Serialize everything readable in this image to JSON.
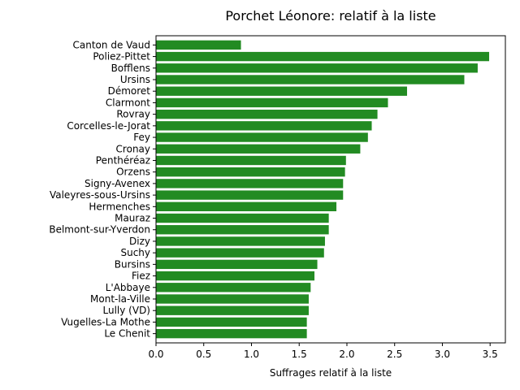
{
  "chart_data": {
    "type": "bar",
    "orientation": "horizontal",
    "title": "Porchet Léonore: relatif à la liste",
    "xlabel": "Suffrages relatif à la liste",
    "ylabel": "",
    "xlim": [
      0,
      3.66
    ],
    "xticks": [
      "0.0",
      "0.5",
      "1.0",
      "1.5",
      "2.0",
      "2.5",
      "3.0",
      "3.5"
    ],
    "grid": false,
    "bar_color": "#228b22",
    "categories": [
      "Canton de Vaud",
      "Poliez-Pittet",
      "Bofflens",
      "Ursins",
      "Démoret",
      "Clarmont",
      "Rovray",
      "Corcelles-le-Jorat",
      "Fey",
      "Cronay",
      "Penthéréaz",
      "Orzens",
      "Signy-Avenex",
      "Valeyres-sous-Ursins",
      "Hermenches",
      "Mauraz",
      "Belmont-sur-Yverdon",
      "Dizy",
      "Suchy",
      "Bursins",
      "Fiez",
      "L'Abbaye",
      "Mont-la-Ville",
      "Lully (VD)",
      "Vugelles-La Mothe",
      "Le Chenit"
    ],
    "values": [
      0.89,
      3.49,
      3.37,
      3.23,
      2.63,
      2.43,
      2.32,
      2.26,
      2.22,
      2.14,
      1.99,
      1.98,
      1.96,
      1.96,
      1.89,
      1.81,
      1.81,
      1.77,
      1.76,
      1.69,
      1.66,
      1.62,
      1.6,
      1.6,
      1.58,
      1.58
    ]
  }
}
